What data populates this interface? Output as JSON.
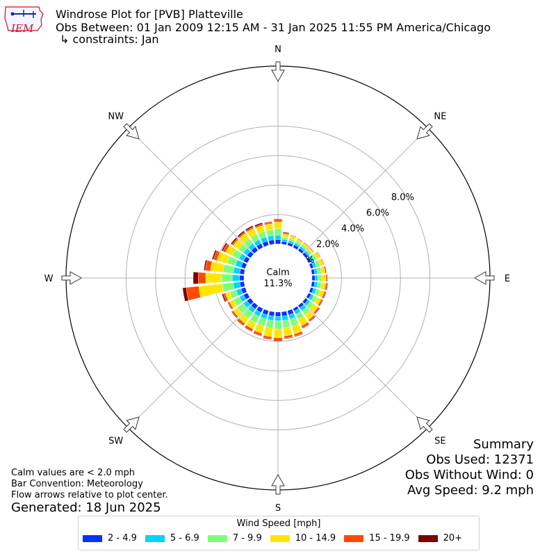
{
  "header": {
    "title": "Windrose Plot for [PVB] Platteville",
    "period": "Obs Between: 01 Jan 2009 12:15 AM - 31 Jan 2025 11:55 PM America/Chicago",
    "constraints": "↳ constraints: Jan",
    "logo_text": "IEM"
  },
  "summary": {
    "heading": "Summary",
    "obs_used": "Obs Used: 12371",
    "obs_without_wind": "Obs Without Wind: 0",
    "avg_speed": "Avg Speed: 9.2 mph"
  },
  "notes": {
    "calm_def": "Calm values are < 2.0 mph",
    "convention": "Bar Convention: Meteorology",
    "arrows": "Flow arrows relative to plot center.",
    "generated": "Generated: 18 Jun 2025"
  },
  "calm": {
    "label": "Calm",
    "value": "11.3%"
  },
  "legend": {
    "title": "Wind Speed [mph]",
    "items": [
      {
        "label": "2 - 4.9",
        "color": "#0033ff"
      },
      {
        "label": "5 - 6.9",
        "color": "#00d4ff"
      },
      {
        "label": "7 - 9.9",
        "color": "#7dff7a"
      },
      {
        "label": "10 - 14.9",
        "color": "#ffe600"
      },
      {
        "label": "15 - 19.9",
        "color": "#ff4a00"
      },
      {
        "label": "20+",
        "color": "#800000"
      }
    ]
  },
  "chart_data": {
    "type": "windrose",
    "calm_percent": 11.3,
    "radial_ticks": [
      "0.0%",
      "2.0%",
      "4.0%",
      "6.0%",
      "8.0%"
    ],
    "radial_tick_values": [
      0,
      2,
      4,
      6,
      8
    ],
    "compass_labels": [
      "N",
      "NE",
      "E",
      "SE",
      "S",
      "SW",
      "W",
      "NW"
    ],
    "speed_bins": [
      "2 - 4.9",
      "5 - 6.9",
      "7 - 9.9",
      "10 - 14.9",
      "15 - 19.9",
      "20+"
    ],
    "colors": [
      "#0033ff",
      "#00d4ff",
      "#7dff7a",
      "#ffe600",
      "#ff4a00",
      "#800000"
    ],
    "directions": [
      0,
      10,
      20,
      30,
      40,
      50,
      60,
      70,
      80,
      90,
      100,
      110,
      120,
      130,
      140,
      150,
      160,
      170,
      180,
      190,
      200,
      210,
      220,
      230,
      240,
      250,
      260,
      270,
      280,
      290,
      300,
      310,
      320,
      330,
      340,
      350
    ],
    "series": [
      {
        "name": "2 - 4.9",
        "values": [
          0.3,
          0.2,
          0.2,
          0.2,
          0.2,
          0.2,
          0.2,
          0.2,
          0.2,
          0.2,
          0.2,
          0.2,
          0.2,
          0.2,
          0.2,
          0.2,
          0.3,
          0.3,
          0.3,
          0.3,
          0.3,
          0.3,
          0.3,
          0.3,
          0.3,
          0.3,
          0.3,
          0.3,
          0.3,
          0.3,
          0.3,
          0.3,
          0.3,
          0.3,
          0.3,
          0.3
        ]
      },
      {
        "name": "5 - 6.9",
        "values": [
          0.3,
          0.15,
          0.15,
          0.15,
          0.15,
          0.15,
          0.2,
          0.2,
          0.2,
          0.2,
          0.2,
          0.2,
          0.2,
          0.2,
          0.25,
          0.25,
          0.3,
          0.3,
          0.3,
          0.3,
          0.3,
          0.3,
          0.3,
          0.3,
          0.3,
          0.35,
          0.45,
          0.5,
          0.45,
          0.4,
          0.35,
          0.3,
          0.3,
          0.3,
          0.3,
          0.3
        ]
      },
      {
        "name": "7 - 9.9",
        "values": [
          0.45,
          0.15,
          0.15,
          0.15,
          0.15,
          0.15,
          0.25,
          0.25,
          0.25,
          0.25,
          0.25,
          0.25,
          0.25,
          0.3,
          0.35,
          0.35,
          0.5,
          0.5,
          0.55,
          0.5,
          0.5,
          0.5,
          0.5,
          0.5,
          0.45,
          0.45,
          0.75,
          0.75,
          0.7,
          0.6,
          0.5,
          0.4,
          0.4,
          0.4,
          0.4,
          0.4
        ]
      },
      {
        "name": "10 - 14.9",
        "values": [
          0.45,
          0.2,
          0.2,
          0.15,
          0.15,
          0.15,
          0.2,
          0.25,
          0.25,
          0.3,
          0.3,
          0.3,
          0.3,
          0.35,
          0.4,
          0.5,
          0.55,
          0.55,
          0.6,
          0.6,
          0.5,
          0.45,
          0.4,
          0.35,
          0.3,
          0.3,
          1.6,
          1.05,
          0.85,
          0.7,
          0.5,
          0.45,
          0.45,
          0.45,
          0.4,
          0.4
        ]
      },
      {
        "name": "15 - 19.9",
        "values": [
          0.15,
          0.1,
          0.05,
          0.05,
          0.05,
          0.05,
          0.05,
          0.05,
          0.1,
          0.1,
          0.1,
          0.1,
          0.1,
          0.1,
          0.1,
          0.15,
          0.15,
          0.15,
          0.2,
          0.15,
          0.15,
          0.15,
          0.15,
          0.1,
          0.1,
          0.15,
          0.85,
          0.5,
          0.35,
          0.25,
          0.2,
          0.1,
          0.1,
          0.1,
          0.1,
          0.1
        ]
      },
      {
        "name": "20+",
        "values": [
          0.05,
          0.05,
          0.0,
          0.0,
          0.0,
          0.0,
          0.0,
          0.0,
          0.0,
          0.0,
          0.05,
          0.05,
          0.05,
          0.05,
          0.05,
          0.05,
          0.05,
          0.05,
          0.05,
          0.05,
          0.05,
          0.05,
          0.05,
          0.05,
          0.05,
          0.1,
          0.25,
          0.35,
          0.1,
          0.1,
          0.1,
          0.1,
          0.1,
          0.1,
          0.1,
          0.05
        ]
      }
    ]
  }
}
